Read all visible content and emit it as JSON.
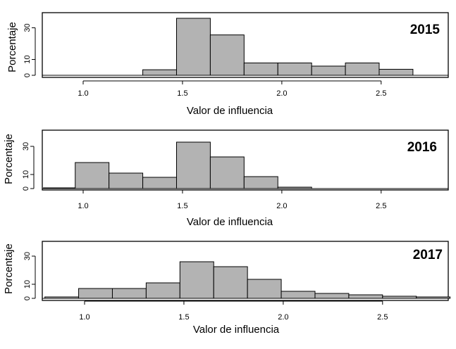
{
  "chart_data": [
    {
      "type": "bar",
      "title": "2015",
      "xlabel": "Valor de influencia",
      "ylabel": "Porcentaje",
      "xlim": [
        0.78,
        2.82
      ],
      "ylim": [
        0,
        36
      ],
      "x_ticks": [
        1.0,
        1.5,
        2.0,
        2.5
      ],
      "x_tick_labels": [
        "1.0",
        "1.5",
        "2.0",
        "2.5"
      ],
      "y_ticks": [
        0,
        10,
        30
      ],
      "y_tick_labels": [
        "0",
        "10",
        "30"
      ],
      "bin_edges": [
        1.3,
        1.47,
        1.64,
        1.81,
        1.98,
        2.15,
        2.32,
        2.49,
        2.66
      ],
      "values": [
        3.5,
        36,
        25.5,
        7.8,
        7.8,
        5.8,
        7.8,
        3.8
      ],
      "grid": false,
      "legend": "none"
    },
    {
      "type": "bar",
      "title": "2016",
      "xlabel": "Valor de influencia",
      "ylabel": "Porcentaje",
      "xlim": [
        0.78,
        2.82
      ],
      "ylim": [
        0,
        36
      ],
      "x_ticks": [
        1.0,
        1.5,
        2.0,
        2.5
      ],
      "x_tick_labels": [
        "1.0",
        "1.5",
        "2.0",
        "2.5"
      ],
      "y_ticks": [
        0,
        10,
        30
      ],
      "y_tick_labels": [
        "0",
        "10",
        "30"
      ],
      "bin_edges": [
        0.8,
        0.96,
        1.13,
        1.3,
        1.47,
        1.64,
        1.81,
        1.98,
        2.15
      ],
      "values": [
        0.5,
        18.5,
        11,
        8,
        33,
        22.5,
        8.5,
        1
      ],
      "grid": false,
      "legend": "none"
    },
    {
      "type": "bar",
      "title": "2017",
      "xlabel": "Valor de influencia",
      "ylabel": "Porcentaje",
      "xlim": [
        0.78,
        2.82
      ],
      "ylim": [
        0,
        36
      ],
      "x_ticks": [
        1.0,
        1.5,
        2.0,
        2.5
      ],
      "x_tick_labels": [
        "1.0",
        "1.5",
        "2.0",
        "2.5"
      ],
      "y_ticks": [
        0,
        10,
        30
      ],
      "y_tick_labels": [
        "0",
        "10",
        "30"
      ],
      "bin_edges": [
        0.8,
        0.97,
        1.14,
        1.31,
        1.48,
        1.65,
        1.82,
        1.99,
        2.16,
        2.33,
        2.5,
        2.67,
        2.84
      ],
      "values": [
        1,
        7,
        7,
        11,
        26,
        22.5,
        13.5,
        5,
        3.5,
        2.5,
        1.5,
        1
      ],
      "grid": false,
      "legend": "none"
    }
  ],
  "colors": {
    "bar_fill": "#b3b3b3",
    "bar_stroke": "#000000",
    "axis": "#000000"
  }
}
